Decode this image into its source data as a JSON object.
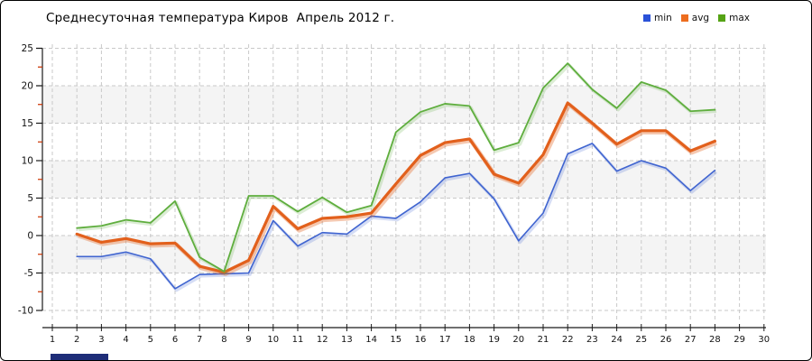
{
  "title": "Среднесуточная температура Киров  Апрель 2012 г.",
  "legend": {
    "position": "top-right",
    "items": [
      {
        "label": "min",
        "color": "#2a52d8"
      },
      {
        "label": "avg",
        "color": "#ed6d1e"
      },
      {
        "label": "max",
        "color": "#55a315"
      }
    ]
  },
  "chart_data": {
    "type": "line",
    "title": "Среднесуточная температура Киров  Апрель 2012 г.",
    "xlabel": "",
    "ylabel": "",
    "x_axis_range": [
      1,
      30
    ],
    "x_ticks": [
      "1",
      "2",
      "3",
      "4",
      "5",
      "6",
      "7",
      "8",
      "9",
      "10",
      "11",
      "12",
      "13",
      "14",
      "15",
      "16",
      "17",
      "18",
      "19",
      "20",
      "21",
      "22",
      "23",
      "24",
      "25",
      "26",
      "27",
      "28",
      "29",
      "30"
    ],
    "ylim": [
      -10,
      25
    ],
    "y_ticks": [
      "25",
      "20",
      "15",
      "10",
      "5",
      "0",
      "-5",
      "-10"
    ],
    "y_tick_step": 5,
    "y_minor_tick_step": 2.5,
    "grid": true,
    "x": [
      2,
      3,
      4,
      5,
      6,
      7,
      8,
      9,
      10,
      11,
      12,
      13,
      14,
      15,
      16,
      17,
      18,
      19,
      20,
      21,
      22,
      23,
      24,
      25,
      26,
      27,
      28
    ],
    "series": [
      {
        "name": "min",
        "color": "#3f64d0",
        "width": 1.6,
        "values": [
          -2.8,
          -2.8,
          -2.2,
          -3.1,
          -7.1,
          -5.2,
          -5.1,
          -5.0,
          2.0,
          -1.4,
          0.4,
          0.2,
          2.6,
          2.3,
          4.5,
          7.7,
          8.3,
          4.9,
          -0.7,
          3.0,
          10.9,
          12.3,
          8.6,
          10.0,
          9.0,
          6.0,
          8.7
        ]
      },
      {
        "name": "avg",
        "color": "#e2601c",
        "width": 3.2,
        "values": [
          0.2,
          -0.9,
          -0.4,
          -1.1,
          -1.0,
          -4.1,
          -4.9,
          -3.3,
          3.9,
          0.9,
          2.3,
          2.5,
          3.0,
          6.9,
          10.7,
          12.4,
          12.9,
          8.2,
          7.0,
          10.8,
          17.7,
          15.0,
          12.2,
          14.0,
          14.0,
          11.3,
          12.6
        ]
      },
      {
        "name": "max",
        "color": "#5fae3e",
        "width": 1.8,
        "values": [
          1.0,
          1.3,
          2.1,
          1.7,
          4.6,
          -2.9,
          -4.8,
          5.3,
          5.3,
          3.2,
          5.1,
          3.1,
          4.0,
          13.8,
          16.5,
          17.6,
          17.3,
          11.4,
          12.4,
          19.7,
          23.0,
          19.5,
          17.0,
          20.5,
          19.4,
          16.6,
          16.8
        ]
      }
    ]
  },
  "style_colors": {
    "band": "#f4f4f4",
    "grid": "#c9c9c9",
    "axis": "#1a1a1a",
    "tick_label": "#111111",
    "minor_tick": "#cc3300",
    "bottom_bar": "#1e2d78"
  }
}
